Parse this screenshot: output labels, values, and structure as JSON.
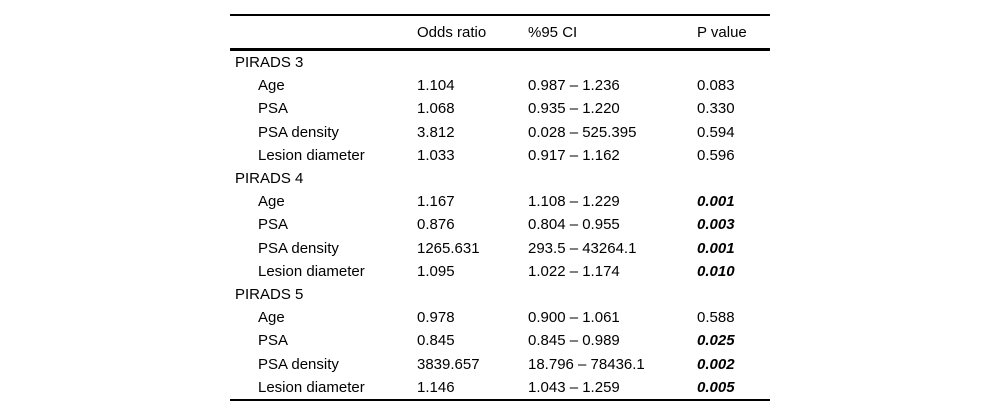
{
  "table": {
    "headers": [
      "",
      "Odds ratio",
      "%95 CI",
      "P value"
    ],
    "sections": [
      {
        "label": "PIRADS 3",
        "rows": [
          {
            "label": "Age",
            "or": "1.104",
            "ci": "0.987 – 1.236",
            "p": "0.083",
            "significant": false
          },
          {
            "label": "PSA",
            "or": "1.068",
            "ci": "0.935 – 1.220",
            "p": "0.330",
            "significant": false
          },
          {
            "label": "PSA density",
            "or": "3.812",
            "ci": "0.028 – 525.395",
            "p": "0.594",
            "significant": false
          },
          {
            "label": "Lesion diameter",
            "or": "1.033",
            "ci": "0.917 – 1.162",
            "p": "0.596",
            "significant": false
          }
        ]
      },
      {
        "label": "PIRADS 4",
        "rows": [
          {
            "label": "Age",
            "or": "1.167",
            "ci": "1.108 – 1.229",
            "p": "0.001",
            "significant": true
          },
          {
            "label": "PSA",
            "or": "0.876",
            "ci": "0.804 – 0.955",
            "p": "0.003",
            "significant": true
          },
          {
            "label": "PSA density",
            "or": "1265.631",
            "ci": "293.5 – 43264.1",
            "p": "0.001",
            "significant": true
          },
          {
            "label": "Lesion diameter",
            "or": "1.095",
            "ci": "1.022 – 1.174",
            "p": "0.010",
            "significant": true
          }
        ]
      },
      {
        "label": "PIRADS 5",
        "rows": [
          {
            "label": "Age",
            "or": "0.978",
            "ci": "0.900 – 1.061",
            "p": "0.588",
            "significant": false
          },
          {
            "label": "PSA",
            "or": "0.845",
            "ci": "0.845 – 0.989",
            "p": "0.025",
            "significant": true
          },
          {
            "label": "PSA density",
            "or": "3839.657",
            "ci": "18.796 – 78436.1",
            "p": "0.002",
            "significant": true
          },
          {
            "label": "Lesion diameter",
            "or": "1.146",
            "ci": "1.043 – 1.259",
            "p": "0.005",
            "significant": true
          }
        ]
      }
    ],
    "colors": {
      "text": "#000000",
      "background": "#ffffff",
      "rule": "#000000"
    }
  }
}
